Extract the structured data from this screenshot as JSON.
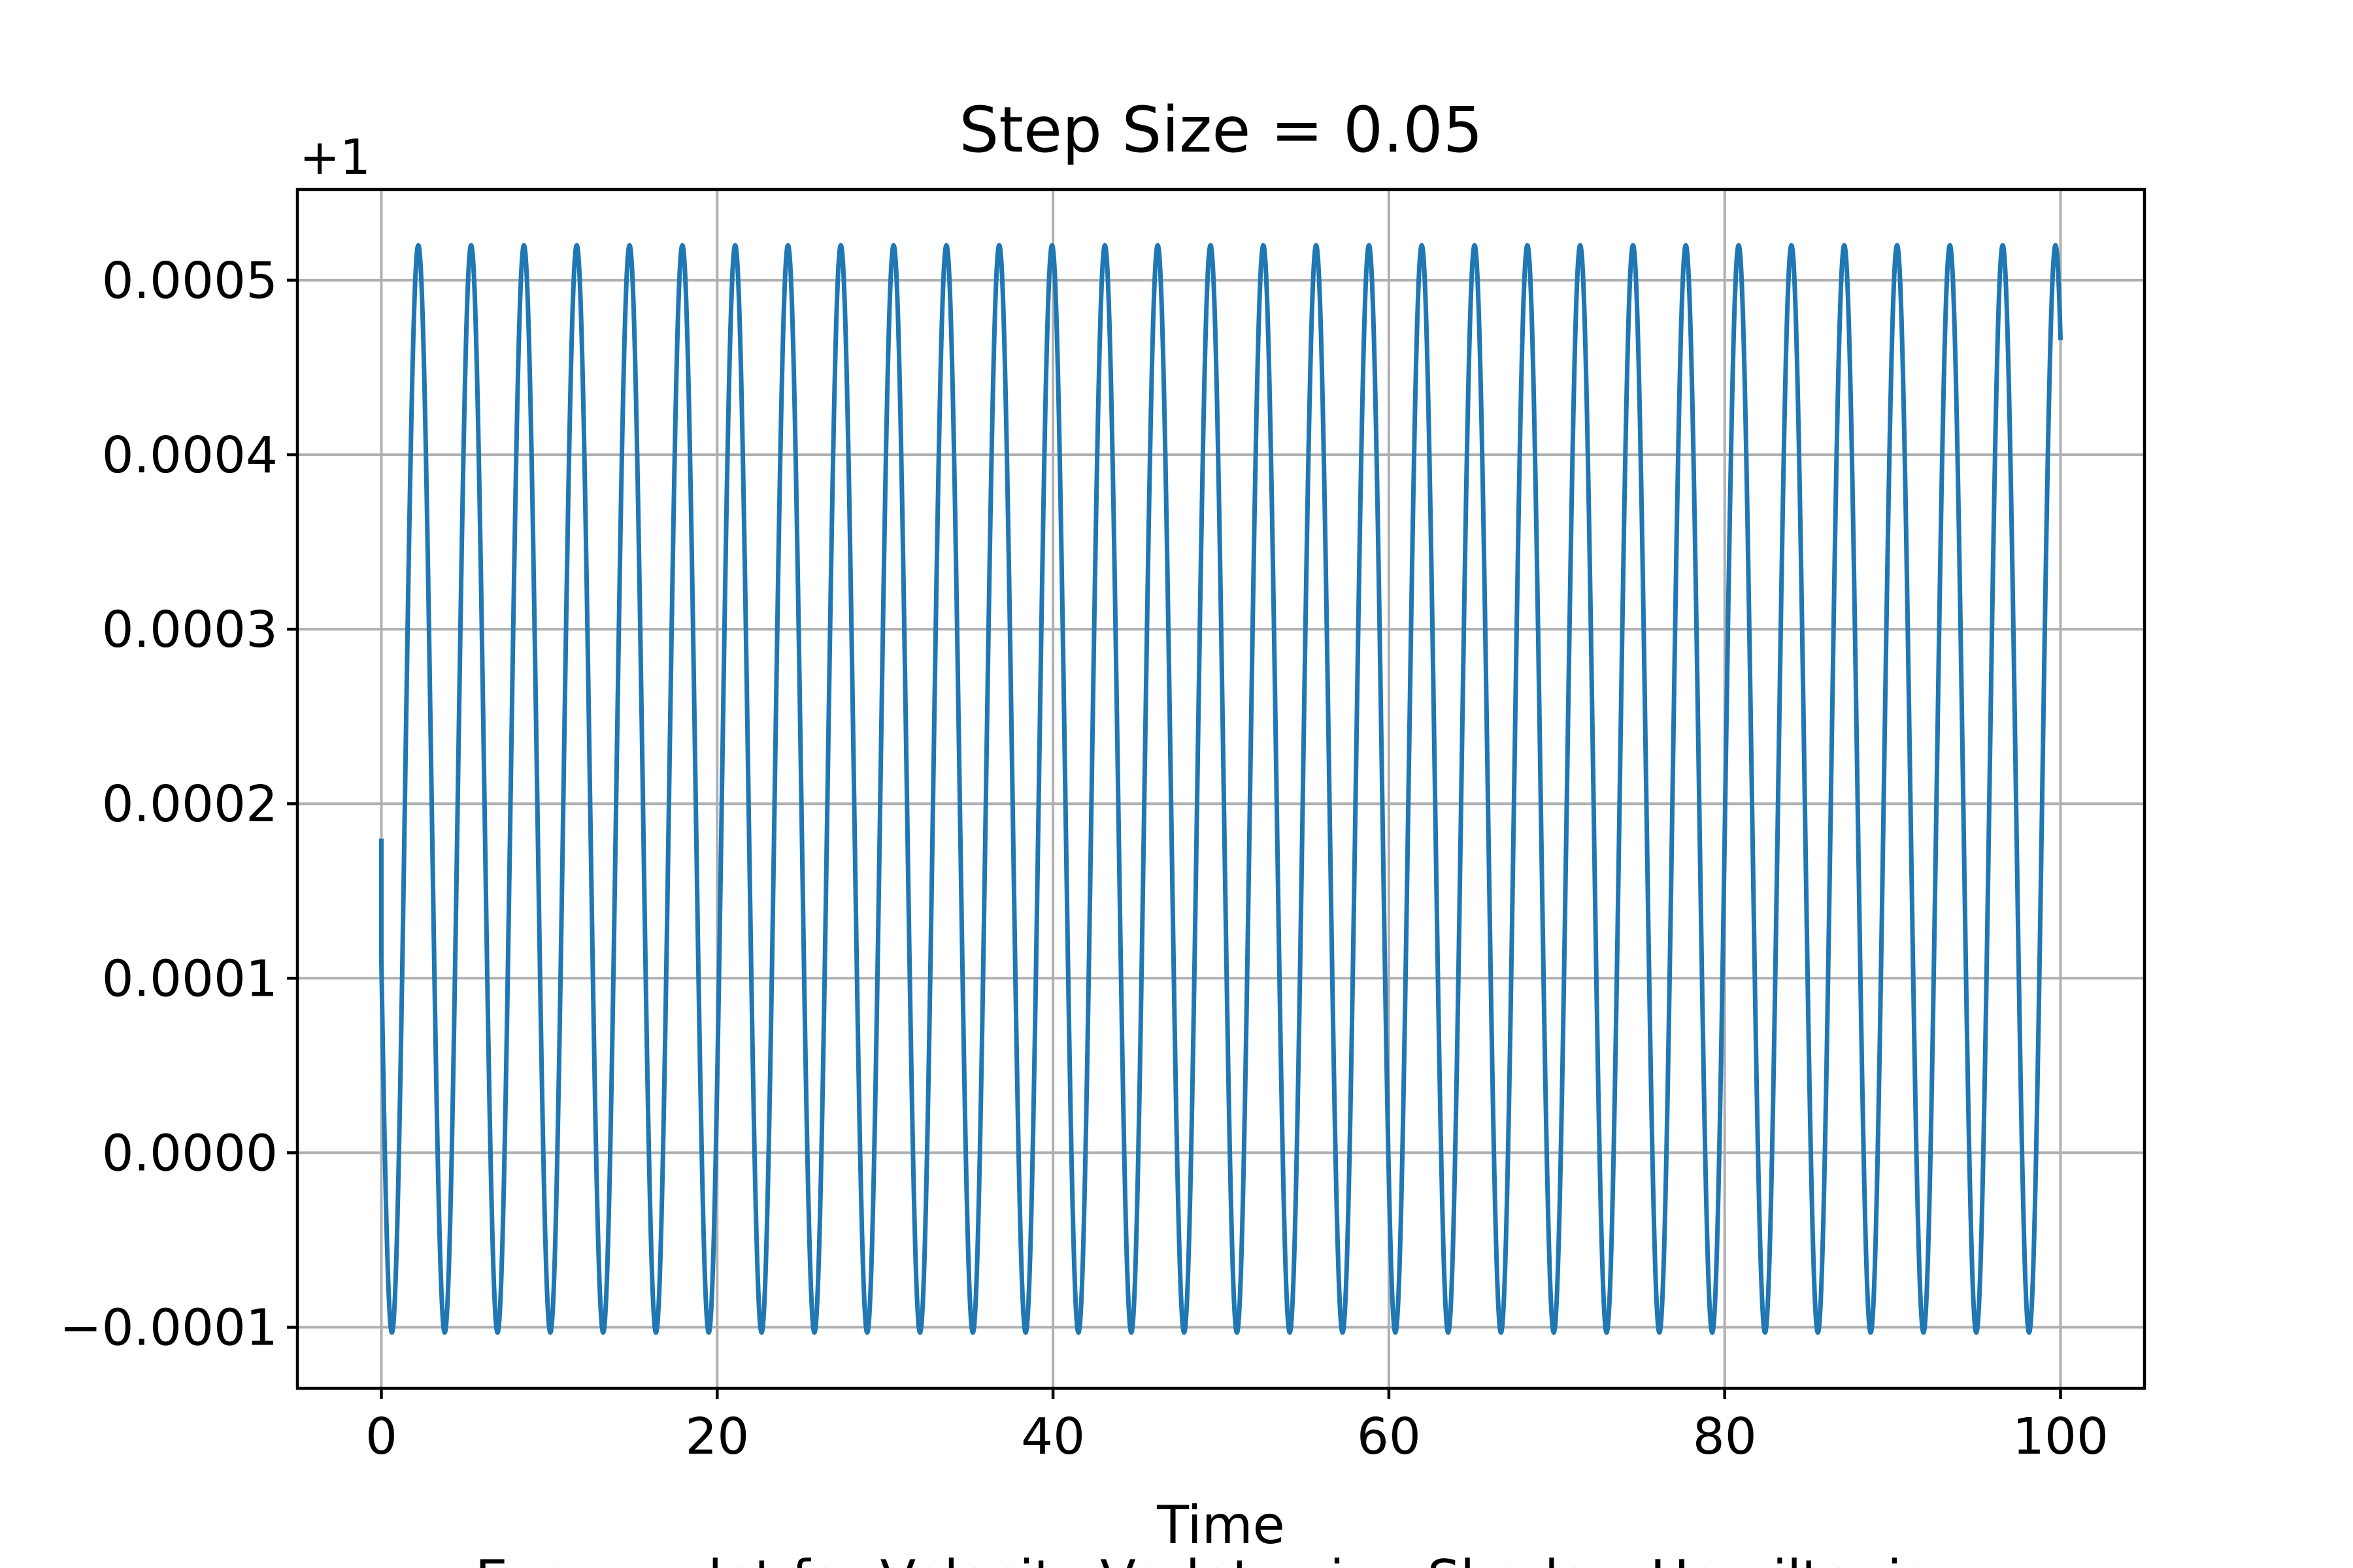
{
  "chart_data": {
    "type": "line",
    "title": "Step Size = 0.05",
    "xlabel": "Time",
    "ylabel": "",
    "caption": "Energy plot for Velocity-Verlet using Shadow Hamiltonian",
    "y_offset_label": "+1",
    "y_offset": 1,
    "xlim": [
      -5,
      105
    ],
    "ylim": [
      -0.000135,
      0.000552
    ],
    "x_ticks": [
      0,
      20,
      40,
      60,
      80,
      100
    ],
    "x_tick_labels": [
      "0",
      "20",
      "40",
      "60",
      "80",
      "100"
    ],
    "y_ticks": [
      -0.0001,
      0.0,
      0.0001,
      0.0002,
      0.0003,
      0.0004,
      0.0005
    ],
    "y_tick_labels": [
      "−0.0001",
      "0.0000",
      "0.0001",
      "0.0002",
      "0.0003",
      "0.0004",
      "0.0005"
    ],
    "grid": true,
    "series": [
      {
        "color": "#1f77b4",
        "description": "energy minus offset (+1), oscillating",
        "x_start": 0,
        "x_end": 100,
        "y_start": 0.00018,
        "y_min": -0.000103,
        "y_max": 0.00052,
        "peak_times": [
          2.2,
          5.3,
          8.5,
          11.6,
          14.8,
          17.9,
          21.1,
          24.2,
          27.3,
          30.5,
          33.6,
          36.8,
          39.9,
          43.1,
          46.2,
          49.4,
          52.5,
          55.6,
          58.8,
          61.9,
          65.1,
          68.2,
          71.4,
          74.5,
          77.6,
          80.8,
          83.9,
          87.1,
          90.2,
          93.4,
          96.5,
          99.7
        ]
      }
    ]
  }
}
